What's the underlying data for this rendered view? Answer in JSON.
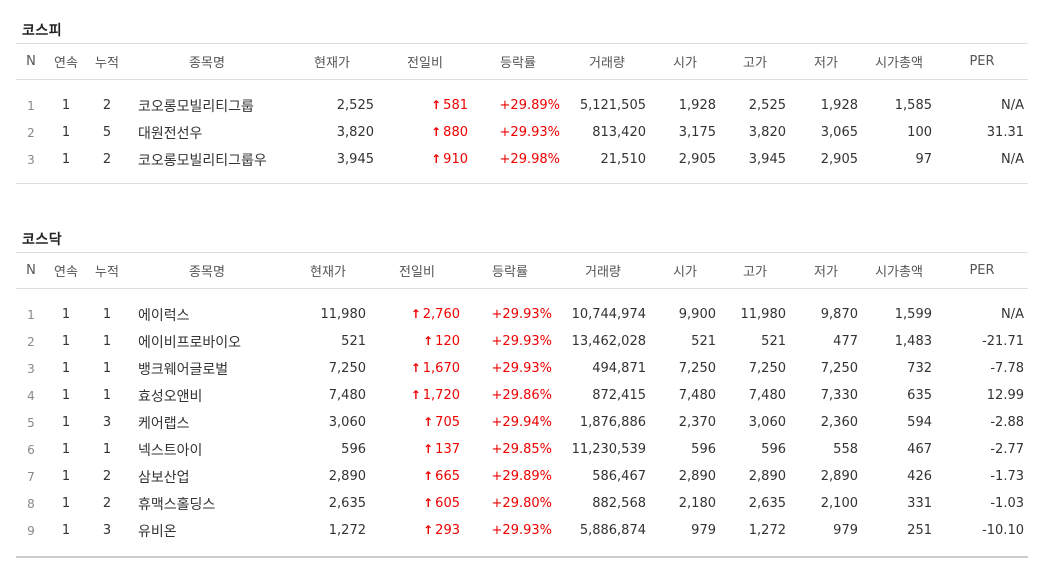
{
  "headers": [
    "N",
    "연속",
    "누적",
    "종목명",
    "현재가",
    "전일비",
    "등락률",
    "거래량",
    "시가",
    "고가",
    "저가",
    "시가총액",
    "PER"
  ],
  "kospi": {
    "title": "코스피",
    "rows": [
      {
        "n": "1",
        "streak": "1",
        "total": "2",
        "name": "코오롱모빌리티그룹",
        "price": "2,525",
        "change": "581",
        "rate": "+29.89%",
        "volume": "5,121,505",
        "open": "1,928",
        "high": "2,525",
        "low": "1,928",
        "cap": "1,585",
        "per": "N/A"
      },
      {
        "n": "2",
        "streak": "1",
        "total": "5",
        "name": "대원전선우",
        "price": "3,820",
        "change": "880",
        "rate": "+29.93%",
        "volume": "813,420",
        "open": "3,175",
        "high": "3,820",
        "low": "3,065",
        "cap": "100",
        "per": "31.31"
      },
      {
        "n": "3",
        "streak": "1",
        "total": "2",
        "name": "코오롱모빌리티그룹우",
        "price": "3,945",
        "change": "910",
        "rate": "+29.98%",
        "volume": "21,510",
        "open": "2,905",
        "high": "3,945",
        "low": "2,905",
        "cap": "97",
        "per": "N/A"
      }
    ]
  },
  "kosdaq": {
    "title": "코스닥",
    "rows": [
      {
        "n": "1",
        "streak": "1",
        "total": "1",
        "name": "에이럭스",
        "price": "11,980",
        "change": "2,760",
        "rate": "+29.93%",
        "volume": "10,744,974",
        "open": "9,900",
        "high": "11,980",
        "low": "9,870",
        "cap": "1,599",
        "per": "N/A"
      },
      {
        "n": "2",
        "streak": "1",
        "total": "1",
        "name": "에이비프로바이오",
        "price": "521",
        "change": "120",
        "rate": "+29.93%",
        "volume": "13,462,028",
        "open": "521",
        "high": "521",
        "low": "477",
        "cap": "1,483",
        "per": "-21.71"
      },
      {
        "n": "3",
        "streak": "1",
        "total": "1",
        "name": "뱅크웨어글로벌",
        "price": "7,250",
        "change": "1,670",
        "rate": "+29.93%",
        "volume": "494,871",
        "open": "7,250",
        "high": "7,250",
        "low": "7,250",
        "cap": "732",
        "per": "-7.78"
      },
      {
        "n": "4",
        "streak": "1",
        "total": "1",
        "name": "효성오앤비",
        "price": "7,480",
        "change": "1,720",
        "rate": "+29.86%",
        "volume": "872,415",
        "open": "7,480",
        "high": "7,480",
        "low": "7,330",
        "cap": "635",
        "per": "12.99"
      },
      {
        "n": "5",
        "streak": "1",
        "total": "3",
        "name": "케어랩스",
        "price": "3,060",
        "change": "705",
        "rate": "+29.94%",
        "volume": "1,876,886",
        "open": "2,370",
        "high": "3,060",
        "low": "2,360",
        "cap": "594",
        "per": "-2.88"
      },
      {
        "n": "6",
        "streak": "1",
        "total": "1",
        "name": "넥스트아이",
        "price": "596",
        "change": "137",
        "rate": "+29.85%",
        "volume": "11,230,539",
        "open": "596",
        "high": "596",
        "low": "558",
        "cap": "467",
        "per": "-2.77"
      },
      {
        "n": "7",
        "streak": "1",
        "total": "2",
        "name": "삼보산업",
        "price": "2,890",
        "change": "665",
        "rate": "+29.89%",
        "volume": "586,467",
        "open": "2,890",
        "high": "2,890",
        "low": "2,890",
        "cap": "426",
        "per": "-1.73"
      },
      {
        "n": "8",
        "streak": "1",
        "total": "2",
        "name": "휴맥스홀딩스",
        "price": "2,635",
        "change": "605",
        "rate": "+29.80%",
        "volume": "882,568",
        "open": "2,180",
        "high": "2,635",
        "low": "2,100",
        "cap": "331",
        "per": "-1.03"
      },
      {
        "n": "9",
        "streak": "1",
        "total": "3",
        "name": "유비온",
        "price": "1,272",
        "change": "293",
        "rate": "+29.93%",
        "volume": "5,886,874",
        "open": "979",
        "high": "1,272",
        "low": "979",
        "cap": "251",
        "per": "-10.10"
      }
    ]
  },
  "colors": {
    "up": "#e00000",
    "muted": "#888888",
    "border": "#dddddd"
  },
  "icons": {
    "up": "up-arrow-icon"
  }
}
